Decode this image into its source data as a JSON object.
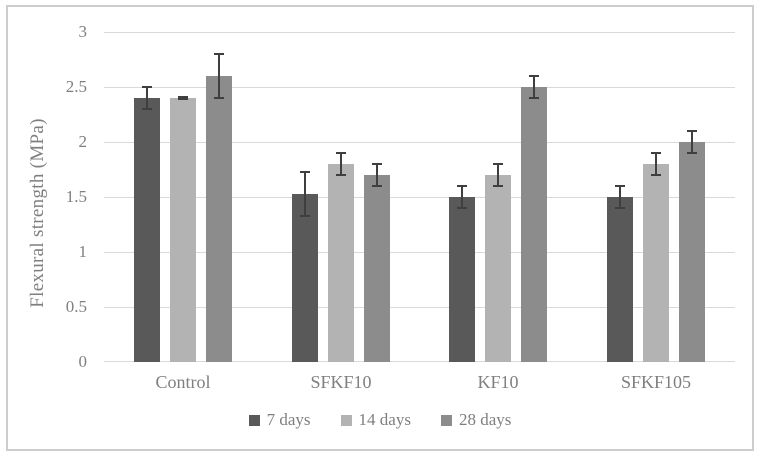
{
  "figure": {
    "background": "#ffffff",
    "border_color": "#cdcdcd"
  },
  "chart_data": {
    "type": "bar",
    "title": "",
    "xlabel": "",
    "ylabel": "Flexural strength (MPa)",
    "ylim": [
      0,
      3
    ],
    "ytick_labels": [
      "0",
      "0.5",
      "1",
      "1.5",
      "2",
      "2.5",
      "3"
    ],
    "ytick_values": [
      0,
      0.5,
      1,
      1.5,
      2,
      2.5,
      3
    ],
    "grid": true,
    "legend_position": "bottom",
    "categories": [
      "Control",
      "SFKF10",
      "KF10",
      "SFKF105"
    ],
    "series": [
      {
        "name": "7 days",
        "color": "#595959",
        "values": [
          2.4,
          1.53,
          1.5,
          1.5
        ],
        "errors": [
          0.1,
          0.2,
          0.1,
          0.1
        ]
      },
      {
        "name": "14 days",
        "color": "#b3b3b3",
        "values": [
          2.4,
          1.8,
          1.7,
          1.8
        ],
        "errors": [
          0.01,
          0.1,
          0.1,
          0.1
        ]
      },
      {
        "name": "28 days",
        "color": "#8c8c8c",
        "values": [
          2.6,
          1.7,
          2.5,
          2.0
        ],
        "errors": [
          0.2,
          0.1,
          0.1,
          0.1
        ]
      }
    ],
    "error_bar_color": "#3f3f3f",
    "gridline_color": "#d9d9d9",
    "text_color": "#7f7f7f"
  }
}
